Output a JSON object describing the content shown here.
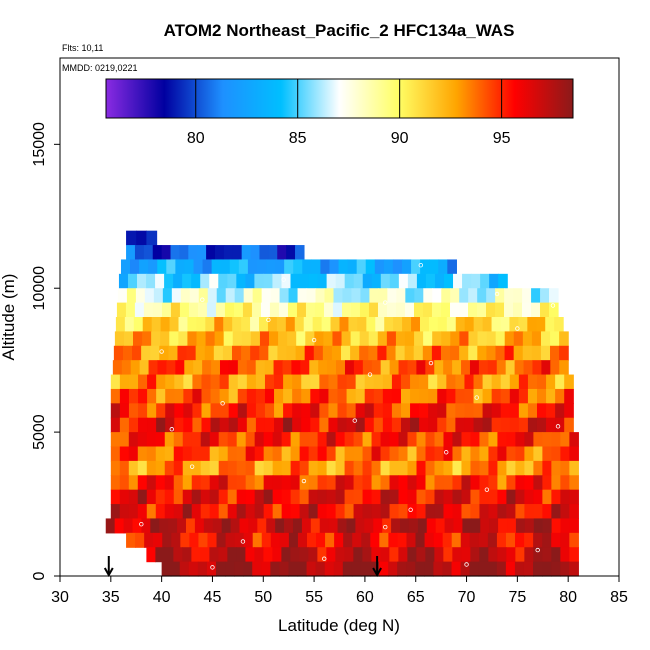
{
  "chart_data": {
    "type": "heatmap",
    "title": "ATOM2 Northeast_Pacific_2 HFC134a_WAS",
    "flights_note": "Flts: 10,11",
    "dates_note": "MMDD: 0219,0221",
    "xlabel": "Latitude (deg N)",
    "ylabel": "Altitude (m)",
    "xlim": [
      30,
      85
    ],
    "ylim": [
      0,
      18000
    ],
    "x_ticks": [
      30,
      35,
      40,
      45,
      50,
      55,
      60,
      65,
      70,
      75,
      80,
      85
    ],
    "y_ticks": [
      0,
      5000,
      10000,
      15000
    ],
    "colorbar": {
      "range": [
        75.6,
        98.5
      ],
      "ticks": [
        80,
        85,
        90,
        95
      ],
      "stops": [
        "#8a2be2",
        "#0000a0",
        "#1e90ff",
        "#00bfff",
        "#ffffff",
        "#ffff66",
        "#ffa500",
        "#ff0000",
        "#8b1a1a"
      ]
    },
    "arrows_at_latitude": [
      34.8,
      61.2
    ],
    "bands": [
      {
        "alt": [
          11500,
          12000
        ],
        "lat": [
          36.5,
          39.5
        ],
        "value": 78
      },
      {
        "alt": [
          11000,
          11500
        ],
        "lat": [
          36.5,
          54.0
        ],
        "value": 80
      },
      {
        "alt": [
          10500,
          11000
        ],
        "lat": [
          36.0,
          69.0
        ],
        "value": 83
      },
      {
        "alt": [
          10000,
          10500
        ],
        "lat": [
          35.8,
          74.0
        ],
        "value": 85
      },
      {
        "alt": [
          9500,
          10000
        ],
        "lat": [
          35.7,
          79.0
        ],
        "value": 87
      },
      {
        "alt": [
          9000,
          9500
        ],
        "lat": [
          35.6,
          79.0
        ],
        "value": 89
      },
      {
        "alt": [
          8500,
          9000
        ],
        "lat": [
          35.5,
          79.5
        ],
        "value": 91
      },
      {
        "alt": [
          8000,
          8500
        ],
        "lat": [
          35.4,
          80.0
        ],
        "value": 92
      },
      {
        "alt": [
          7500,
          8000
        ],
        "lat": [
          35.3,
          80.0
        ],
        "value": 93
      },
      {
        "alt": [
          7000,
          7500
        ],
        "lat": [
          35.2,
          80.0
        ],
        "value": 94
      },
      {
        "alt": [
          6500,
          7000
        ],
        "lat": [
          35.0,
          80.5
        ],
        "value": 93
      },
      {
        "alt": [
          6000,
          6500
        ],
        "lat": [
          35.0,
          80.5
        ],
        "value": 94
      },
      {
        "alt": [
          5500,
          6000
        ],
        "lat": [
          35.0,
          80.5
        ],
        "value": 95
      },
      {
        "alt": [
          5000,
          5500
        ],
        "lat": [
          35.0,
          80.5
        ],
        "value": 96
      },
      {
        "alt": [
          4500,
          5000
        ],
        "lat": [
          35.0,
          81.0
        ],
        "value": 95
      },
      {
        "alt": [
          4000,
          4500
        ],
        "lat": [
          35.0,
          81.0
        ],
        "value": 94
      },
      {
        "alt": [
          3500,
          4000
        ],
        "lat": [
          35.0,
          81.0
        ],
        "value": 93
      },
      {
        "alt": [
          3000,
          3500
        ],
        "lat": [
          35.0,
          81.0
        ],
        "value": 95
      },
      {
        "alt": [
          2500,
          3000
        ],
        "lat": [
          35.0,
          81.0
        ],
        "value": 96
      },
      {
        "alt": [
          2000,
          2500
        ],
        "lat": [
          35.0,
          81.0
        ],
        "value": 96
      },
      {
        "alt": [
          1500,
          2000
        ],
        "lat": [
          34.5,
          81.0
        ],
        "value": 97
      },
      {
        "alt": [
          1000,
          1500
        ],
        "lat": [
          36.5,
          81.0
        ],
        "value": 96
      },
      {
        "alt": [
          500,
          1000
        ],
        "lat": [
          38.5,
          81.0
        ],
        "value": 97
      },
      {
        "alt": [
          0,
          500
        ],
        "lat": [
          40.0,
          81.0
        ],
        "value": 98
      }
    ],
    "sample_points": [
      {
        "lat": 44.0,
        "alt": 9600
      },
      {
        "lat": 52.0,
        "alt": 10300
      },
      {
        "lat": 62.0,
        "alt": 9500
      },
      {
        "lat": 70.5,
        "alt": 10600
      },
      {
        "lat": 78.5,
        "alt": 9400
      },
      {
        "lat": 40.0,
        "alt": 7800
      },
      {
        "lat": 55.0,
        "alt": 8200
      },
      {
        "lat": 66.5,
        "alt": 7400
      },
      {
        "lat": 75.0,
        "alt": 8600
      },
      {
        "lat": 46.0,
        "alt": 6000
      },
      {
        "lat": 59.0,
        "alt": 5400
      },
      {
        "lat": 71.0,
        "alt": 6200
      },
      {
        "lat": 79.0,
        "alt": 5200
      },
      {
        "lat": 43.0,
        "alt": 3800
      },
      {
        "lat": 54.0,
        "alt": 3300
      },
      {
        "lat": 64.5,
        "alt": 2300
      },
      {
        "lat": 72.0,
        "alt": 3000
      },
      {
        "lat": 38.0,
        "alt": 1800
      },
      {
        "lat": 48.0,
        "alt": 1200
      },
      {
        "lat": 56.0,
        "alt": 600
      },
      {
        "lat": 62.0,
        "alt": 1700
      },
      {
        "lat": 70.0,
        "alt": 400
      },
      {
        "lat": 77.0,
        "alt": 900
      },
      {
        "lat": 68.0,
        "alt": 4300
      },
      {
        "lat": 50.5,
        "alt": 8900
      },
      {
        "lat": 60.5,
        "alt": 7000
      },
      {
        "lat": 45.0,
        "alt": 300
      },
      {
        "lat": 73.0,
        "alt": 9800
      },
      {
        "lat": 41.0,
        "alt": 5100
      },
      {
        "lat": 65.5,
        "alt": 10800
      }
    ]
  }
}
